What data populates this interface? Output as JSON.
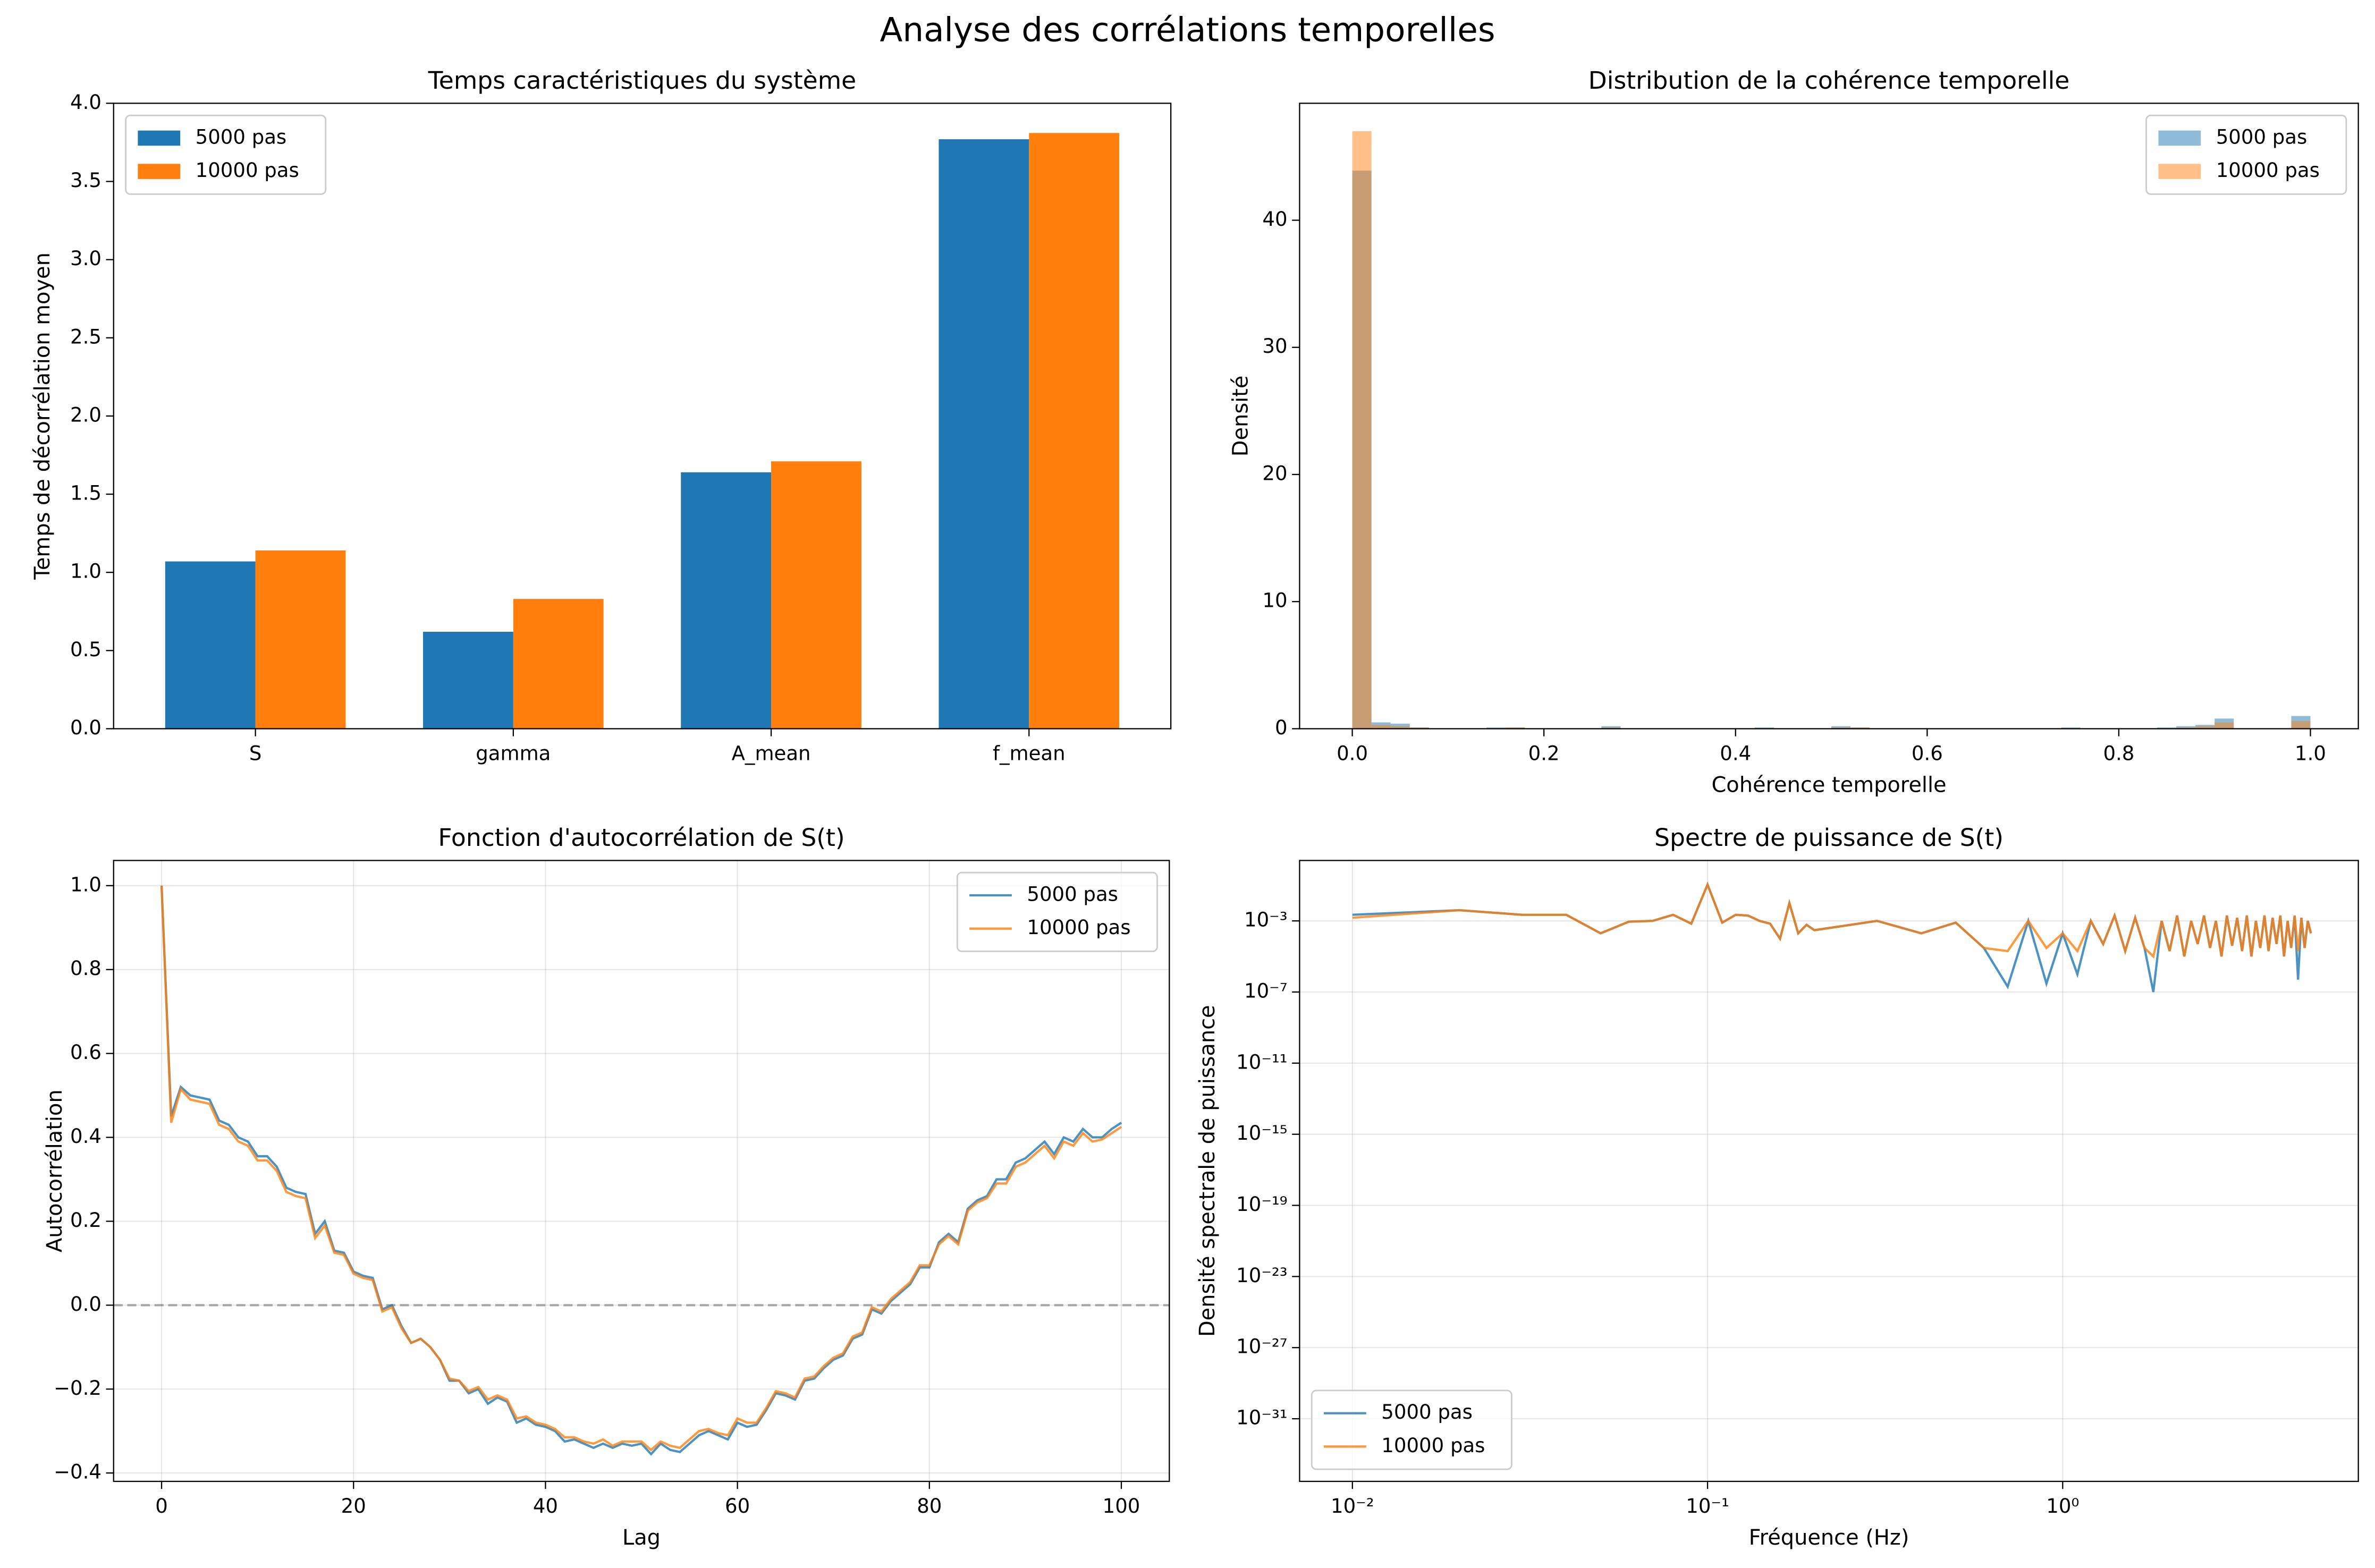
{
  "title": "Analyse des corrélations temporelles",
  "chart_data": [
    {
      "type": "bar",
      "title": "Temps caractéristiques du système",
      "ylabel": "Temps de décorrélation moyen",
      "categories": [
        "S",
        "gamma",
        "A_mean",
        "f_mean"
      ],
      "series": [
        {
          "name": "5000 pas",
          "color": "#1f77b4",
          "values": [
            1.07,
            0.62,
            1.64,
            3.77
          ]
        },
        {
          "name": "10000 pas",
          "color": "#ff7f0e",
          "values": [
            1.14,
            0.83,
            1.71,
            3.81
          ]
        }
      ],
      "ylim": [
        0,
        4
      ],
      "yticks": [
        {
          "value": 0,
          "label": "0.0"
        },
        0.5,
        {
          "value": 1,
          "label": "1.0"
        },
        1.5,
        {
          "value": 2,
          "label": "2.0"
        },
        2.5,
        {
          "value": 3,
          "label": "3.0"
        },
        3.5,
        {
          "value": 4,
          "label": "4.0"
        }
      ],
      "grid": false,
      "legend": "upper left"
    },
    {
      "type": "histogram",
      "title": "Distribution de la cohérence temporelle",
      "xlabel": "Cohérence temporelle",
      "ylabel": "Densité",
      "bins": [
        0,
        0.02,
        0.04,
        0.06,
        0.08,
        0.1,
        0.12,
        0.14,
        0.16,
        0.18,
        0.2,
        0.22,
        0.24,
        0.26,
        0.28,
        0.3,
        0.32,
        0.34,
        0.36,
        0.38,
        0.4,
        0.42,
        0.44,
        0.46,
        0.48,
        0.5,
        0.52,
        0.54,
        0.56,
        0.58,
        0.6,
        0.62,
        0.64,
        0.66,
        0.68,
        0.7,
        0.72,
        0.74,
        0.76,
        0.78,
        0.8,
        0.82,
        0.84,
        0.86,
        0.88,
        0.9,
        0.92,
        0.94,
        0.96,
        0.98,
        1.0
      ],
      "series": [
        {
          "name": "5000 pas",
          "color": "#1f77b4",
          "values": [
            43.9,
            0.5,
            0.4,
            0.1,
            0,
            0,
            0,
            0.1,
            0.1,
            0,
            0,
            0,
            0,
            0.2,
            0,
            0,
            0,
            0,
            0,
            0,
            0,
            0.1,
            0,
            0,
            0,
            0.2,
            0.1,
            0,
            0,
            0,
            0,
            0,
            0,
            0,
            0,
            0,
            0,
            0.1,
            0,
            0,
            0,
            0,
            0.1,
            0.2,
            0.3,
            0.8,
            0,
            0,
            0,
            1.0
          ]
        },
        {
          "name": "10000 pas",
          "color": "#ff7f0e",
          "values": [
            47.0,
            0.3,
            0.2,
            0.1,
            0,
            0,
            0,
            0,
            0.1,
            0,
            0,
            0,
            0,
            0.1,
            0,
            0,
            0,
            0,
            0,
            0,
            0,
            0,
            0,
            0,
            0,
            0.1,
            0.1,
            0,
            0,
            0,
            0,
            0,
            0,
            0,
            0,
            0,
            0,
            0,
            0,
            0,
            0,
            0,
            0,
            0.1,
            0.2,
            0.5,
            0,
            0,
            0,
            0.6
          ]
        }
      ],
      "alpha": 0.5,
      "xlim": [
        -0.055,
        1.05
      ],
      "xticks": [
        {
          "value": 0,
          "label": "0.0"
        },
        0.2,
        0.4,
        0.6,
        0.8,
        {
          "value": 1,
          "label": "1.0"
        }
      ],
      "ylim": [
        0,
        49.2
      ],
      "yticks": [
        0,
        10,
        20,
        30,
        40
      ],
      "grid": false,
      "legend": "upper right"
    },
    {
      "type": "line",
      "title": "Fonction d'autocorrélation de S(t)",
      "xlabel": "Lag",
      "ylabel": "Autocorrélation",
      "x": [
        0,
        1,
        2,
        3,
        4,
        5,
        6,
        7,
        8,
        9,
        10,
        11,
        12,
        13,
        14,
        15,
        16,
        17,
        18,
        19,
        20,
        21,
        22,
        23,
        24,
        25,
        26,
        27,
        28,
        29,
        30,
        31,
        32,
        33,
        34,
        35,
        36,
        37,
        38,
        39,
        40,
        41,
        42,
        43,
        44,
        45,
        46,
        47,
        48,
        49,
        50,
        51,
        52,
        53,
        54,
        55,
        56,
        57,
        58,
        59,
        60,
        61,
        62,
        63,
        64,
        65,
        66,
        67,
        68,
        69,
        70,
        71,
        72,
        73,
        74,
        75,
        76,
        77,
        78,
        79,
        80,
        81,
        82,
        83,
        84,
        85,
        86,
        87,
        88,
        89,
        90,
        91,
        92,
        93,
        94,
        95,
        96,
        97,
        98,
        99,
        100
      ],
      "series": [
        {
          "name": "5000 pas",
          "color": "#1f77b4",
          "values": [
            1.0,
            0.45,
            0.52,
            0.5,
            0.495,
            0.49,
            0.44,
            0.43,
            0.4,
            0.39,
            0.355,
            0.355,
            0.33,
            0.28,
            0.27,
            0.265,
            0.17,
            0.2,
            0.13,
            0.125,
            0.08,
            0.07,
            0.065,
            -0.01,
            0.0,
            -0.05,
            -0.09,
            -0.08,
            -0.1,
            -0.13,
            -0.18,
            -0.18,
            -0.21,
            -0.2,
            -0.235,
            -0.22,
            -0.23,
            -0.28,
            -0.27,
            -0.285,
            -0.29,
            -0.3,
            -0.325,
            -0.32,
            -0.33,
            -0.34,
            -0.33,
            -0.34,
            -0.33,
            -0.335,
            -0.33,
            -0.355,
            -0.33,
            -0.345,
            -0.35,
            -0.33,
            -0.31,
            -0.3,
            -0.31,
            -0.32,
            -0.28,
            -0.29,
            -0.285,
            -0.25,
            -0.21,
            -0.215,
            -0.225,
            -0.18,
            -0.175,
            -0.15,
            -0.13,
            -0.12,
            -0.08,
            -0.07,
            -0.01,
            -0.02,
            0.01,
            0.03,
            0.05,
            0.09,
            0.09,
            0.15,
            0.17,
            0.15,
            0.23,
            0.25,
            0.26,
            0.3,
            0.3,
            0.34,
            0.35,
            0.37,
            0.39,
            0.36,
            0.4,
            0.39,
            0.42,
            0.4,
            0.4,
            0.42,
            0.435
          ]
        },
        {
          "name": "10000 pas",
          "color": "#ff7f0e",
          "values": [
            1.0,
            0.435,
            0.515,
            0.49,
            0.485,
            0.48,
            0.43,
            0.42,
            0.39,
            0.38,
            0.345,
            0.345,
            0.32,
            0.27,
            0.26,
            0.255,
            0.16,
            0.19,
            0.125,
            0.12,
            0.075,
            0.065,
            0.06,
            -0.015,
            -0.005,
            -0.055,
            -0.09,
            -0.08,
            -0.1,
            -0.13,
            -0.175,
            -0.18,
            -0.205,
            -0.195,
            -0.225,
            -0.215,
            -0.225,
            -0.27,
            -0.265,
            -0.28,
            -0.285,
            -0.295,
            -0.315,
            -0.315,
            -0.325,
            -0.33,
            -0.32,
            -0.335,
            -0.325,
            -0.325,
            -0.325,
            -0.345,
            -0.325,
            -0.335,
            -0.34,
            -0.32,
            -0.3,
            -0.295,
            -0.305,
            -0.31,
            -0.27,
            -0.28,
            -0.28,
            -0.245,
            -0.205,
            -0.21,
            -0.22,
            -0.175,
            -0.17,
            -0.145,
            -0.125,
            -0.115,
            -0.075,
            -0.065,
            -0.005,
            -0.015,
            0.015,
            0.035,
            0.055,
            0.095,
            0.095,
            0.145,
            0.165,
            0.145,
            0.225,
            0.245,
            0.255,
            0.29,
            0.29,
            0.33,
            0.34,
            0.36,
            0.38,
            0.35,
            0.39,
            0.38,
            0.41,
            0.39,
            0.395,
            0.41,
            0.425
          ]
        }
      ],
      "alpha": 0.8,
      "hline": 0,
      "xlim": [
        -5,
        105
      ],
      "xticks": [
        0,
        20,
        40,
        60,
        80,
        100
      ],
      "ylim": [
        -0.42,
        1.06
      ],
      "yticks": [
        {
          "value": -0.4,
          "label": "−0.4"
        },
        {
          "value": -0.2,
          "label": "−0.2"
        },
        {
          "value": 0,
          "label": "0.0"
        },
        0.2,
        0.4,
        0.6,
        0.8,
        {
          "value": 1,
          "label": "1.0"
        }
      ],
      "grid": true,
      "legend": "upper right"
    },
    {
      "type": "line",
      "title": "Spectre de puissance de S(t)",
      "xlabel": "Fréquence (Hz)",
      "ylabel": "Densité spectrale de puissance",
      "xscale": "log",
      "yscale": "log",
      "x": [
        0.01,
        0.02,
        0.03,
        0.04,
        0.05,
        0.06,
        0.07,
        0.08,
        0.09,
        0.1,
        0.11,
        0.12,
        0.13,
        0.14,
        0.15,
        0.16,
        0.17,
        0.18,
        0.19,
        0.2,
        0.3,
        0.4,
        0.5,
        0.6,
        0.7,
        0.8,
        0.9,
        1.0,
        1.1,
        1.2,
        1.3,
        1.4,
        1.5,
        1.6,
        1.7,
        1.8,
        1.9,
        2.0,
        2.1,
        2.2,
        2.3,
        2.4,
        2.5,
        2.6,
        2.7,
        2.8,
        2.9,
        3.0,
        3.1,
        3.2,
        3.3,
        3.4,
        3.5,
        3.6,
        3.7,
        3.8,
        3.9,
        4.0,
        4.1,
        4.2,
        4.3,
        4.4,
        4.5,
        4.6,
        4.7,
        4.8,
        4.9,
        5.0
      ],
      "series": [
        {
          "name": "5000 pas",
          "color": "#1f77b4",
          "values": [
            0.0022,
            0.004,
            0.0022,
            0.0022,
            0.0002,
            0.0009,
            0.001,
            0.0022,
            0.0007,
            0.11,
            0.0008,
            0.0022,
            0.002,
            0.001,
            0.0007,
            0.0001,
            0.01,
            0.0002,
            0.0006,
            0.0003,
            0.001,
            0.0002,
            0.0008,
            3e-05,
            2e-07,
            0.001,
            3e-07,
            0.0002,
            1e-06,
            0.001,
            5e-05,
            0.002,
            2e-05,
            0.0015,
            3e-05,
            1e-07,
            0.001,
            2e-05,
            0.002,
            1e-05,
            0.001,
            5e-05,
            0.002,
            3e-05,
            0.001,
            1e-05,
            0.002,
            4e-05,
            0.0015,
            2e-05,
            0.002,
            1e-05,
            0.001,
            3e-05,
            0.002,
            2e-05,
            0.0015,
            5e-05,
            0.002,
            1e-05,
            0.001,
            3e-05,
            0.002,
            5e-07,
            0.0015,
            3e-05,
            0.001,
            0.0002
          ]
        },
        {
          "name": "10000 pas",
          "color": "#ff7f0e",
          "values": [
            0.0015,
            0.004,
            0.0022,
            0.0022,
            0.0002,
            0.0009,
            0.001,
            0.0022,
            0.0007,
            0.11,
            0.0008,
            0.0022,
            0.002,
            0.001,
            0.0007,
            0.0001,
            0.01,
            0.0002,
            0.0006,
            0.0003,
            0.001,
            0.0002,
            0.0008,
            3e-05,
            2e-05,
            0.001,
            3e-05,
            0.0002,
            2e-05,
            0.001,
            5e-05,
            0.002,
            2e-05,
            0.0015,
            3e-05,
            1e-05,
            0.001,
            2e-05,
            0.002,
            1e-05,
            0.001,
            5e-05,
            0.002,
            3e-05,
            0.001,
            1e-05,
            0.002,
            4e-05,
            0.0015,
            2e-05,
            0.002,
            1e-05,
            0.001,
            3e-05,
            0.002,
            2e-05,
            0.0015,
            5e-05,
            0.002,
            1e-05,
            0.001,
            3e-05,
            0.002,
            2e-05,
            0.0015,
            3e-05,
            0.001,
            0.0002
          ]
        }
      ],
      "alpha": 0.8,
      "xlim": [
        0.0071,
        6.8
      ],
      "xticks": [
        {
          "value": 0.01,
          "label": "10⁻²"
        },
        {
          "value": 0.1,
          "label": "10⁻¹"
        },
        {
          "value": 1,
          "label": "10⁰"
        }
      ],
      "ylim": [
        3e-35,
        2.5
      ],
      "yticks": [
        {
          "value": 0.001,
          "label": "10⁻³"
        },
        {
          "value": 1e-07,
          "label": "10⁻⁷"
        },
        {
          "value": 1e-11,
          "label": "10⁻¹¹"
        },
        {
          "value": 1e-15,
          "label": "10⁻¹⁵"
        },
        {
          "value": 1e-19,
          "label": "10⁻¹⁹"
        },
        {
          "value": 1e-23,
          "label": "10⁻²³"
        },
        {
          "value": 1e-27,
          "label": "10⁻²⁷"
        },
        {
          "value": 1e-31,
          "label": "10⁻³¹"
        }
      ],
      "grid": true,
      "legend": "lower left"
    }
  ]
}
